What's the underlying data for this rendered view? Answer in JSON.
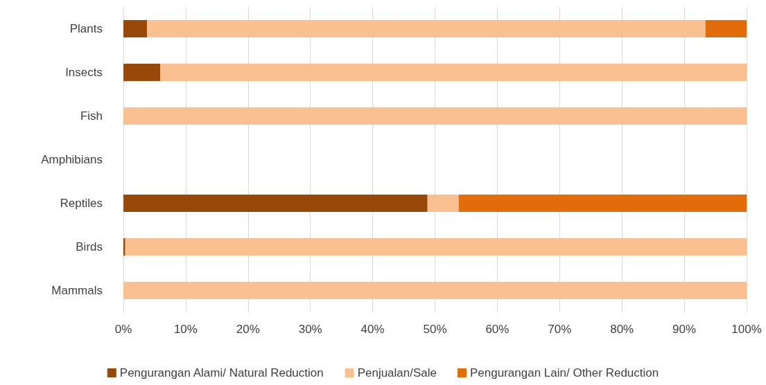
{
  "chart_data": {
    "type": "bar",
    "orientation": "horizontal",
    "stacked": true,
    "categories": [
      "Plants",
      "Insects",
      "Fish",
      "Amphibians",
      "Reptiles",
      "Birds",
      "Mammals"
    ],
    "series": [
      {
        "name": "Pengurangan Alami/ Natural Reduction",
        "color": "#984807",
        "values": [
          3.8,
          5.9,
          0,
          null,
          48.8,
          0.3,
          0
        ]
      },
      {
        "name": "Penjualan/Sale",
        "color": "#fac090",
        "values": [
          89.6,
          94.1,
          100,
          null,
          5.0,
          99.7,
          100
        ]
      },
      {
        "name": "Pengurangan Lain/ Other Reduction",
        "color": "#e26b0a",
        "values": [
          6.6,
          0,
          0,
          null,
          46.2,
          0,
          0
        ]
      }
    ],
    "xlim": [
      0,
      100
    ],
    "xticks": [
      {
        "value": 0,
        "label": "0%"
      },
      {
        "value": 10,
        "label": "10%"
      },
      {
        "value": 20,
        "label": "20%"
      },
      {
        "value": 30,
        "label": "30%"
      },
      {
        "value": 40,
        "label": "40%"
      },
      {
        "value": 50,
        "label": "50%"
      },
      {
        "value": 60,
        "label": "60%"
      },
      {
        "value": 70,
        "label": "70%"
      },
      {
        "value": 80,
        "label": "80%"
      },
      {
        "value": 90,
        "label": "90%"
      },
      {
        "value": 100,
        "label": "100%"
      }
    ],
    "grid": "x",
    "legend": "bottom"
  }
}
